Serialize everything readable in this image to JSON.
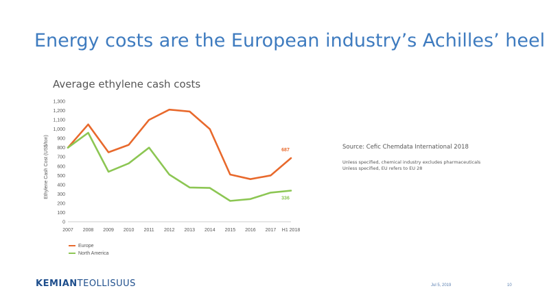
{
  "slide": {
    "title": "Energy costs are the European industry’s Achilles’ heel"
  },
  "chart_data": {
    "type": "line",
    "title": "Average ethylene cash costs",
    "ylabel": "Ethylene Cash Cost (US$/ton)",
    "xlabel": "",
    "categories": [
      "2007",
      "2008",
      "2009",
      "2010",
      "2011",
      "2012",
      "2013",
      "2014",
      "2015",
      "2016",
      "2017",
      "H1 2018"
    ],
    "ylim": [
      0,
      1300
    ],
    "yticks": [
      "0",
      "100",
      "200",
      "300",
      "400",
      "500",
      "600",
      "700",
      "800",
      "900",
      "1,000",
      "1,100",
      "1,200",
      "1,300"
    ],
    "grid": false,
    "legend_position": "bottom-left",
    "series": [
      {
        "name": "Europe",
        "color": "#e8692c",
        "values": [
          800,
          1050,
          750,
          830,
          1100,
          1210,
          1190,
          1000,
          510,
          460,
          500,
          687
        ],
        "end_label": "687"
      },
      {
        "name": "North America",
        "color": "#8cc653",
        "values": [
          800,
          960,
          540,
          630,
          800,
          510,
          370,
          365,
          225,
          245,
          315,
          336
        ],
        "end_label": "336"
      }
    ]
  },
  "source": {
    "text": "Source: Cefic Chemdata International 2018",
    "notes": [
      "Unless specified, chemical industry excludes pharmaceuticals",
      "Unless specified, EU refers to EU 28"
    ]
  },
  "footer": {
    "logo_bold": "KEMIAN",
    "logo_rest": "TEOLLISUUS",
    "date": "Jul 5, 2019",
    "page": "10"
  }
}
